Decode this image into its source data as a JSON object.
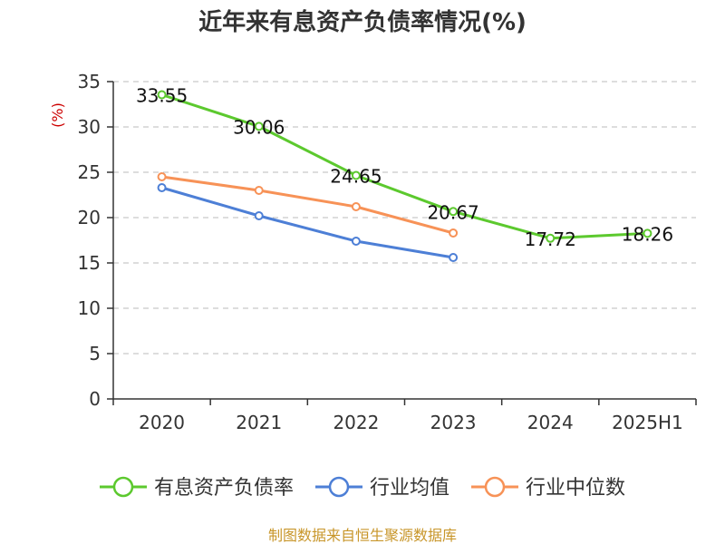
{
  "chart_data": {
    "type": "line",
    "title": "近年来有息资产负债率情况(%)",
    "ylabel": "(%)",
    "xlabel": "",
    "categories": [
      "2020",
      "2021",
      "2022",
      "2023",
      "2024",
      "2025H1"
    ],
    "ylim": [
      0,
      35
    ],
    "yticks": [
      0,
      5,
      10,
      15,
      20,
      25,
      30,
      35
    ],
    "grid": true,
    "legend_position": "bottom",
    "series": [
      {
        "name": "有息资产负债率",
        "color": "#5cc92e",
        "values": [
          33.55,
          30.06,
          24.65,
          20.67,
          17.72,
          18.26
        ],
        "labels": [
          "33.55",
          "30.06",
          "24.65",
          "20.67",
          "17.72",
          "18.26"
        ]
      },
      {
        "name": "行业均值",
        "color": "#4d7fd6",
        "values": [
          23.3,
          20.2,
          17.4,
          15.6,
          null,
          null
        ],
        "labels": []
      },
      {
        "name": "行业中位数",
        "color": "#f79257",
        "values": [
          24.5,
          23.0,
          21.2,
          18.3,
          null,
          null
        ],
        "labels": []
      }
    ]
  },
  "source": "制图数据来自恒生聚源数据库"
}
